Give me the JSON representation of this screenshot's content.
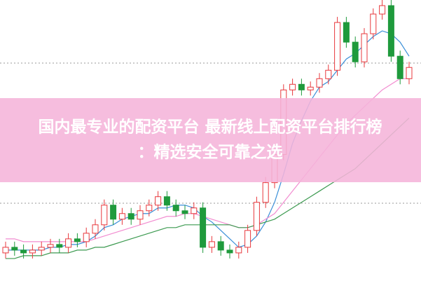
{
  "chart_data": {
    "type": "candlestick",
    "title_lines": [
      "国内最专业的配资平台 最新线上配资平台排行榜",
      "：精选安全可靠之选"
    ],
    "ylim": [
      0,
      100
    ],
    "up_color": "#e8383d",
    "down_color": "#1f9a3c",
    "open": [
      10,
      12,
      11,
      10,
      11,
      12,
      13,
      12,
      15,
      14,
      17,
      20,
      27,
      22,
      24,
      22,
      25,
      27,
      30,
      27,
      25,
      24,
      26,
      12,
      14,
      11,
      10,
      12,
      18,
      28,
      35,
      45,
      68,
      70,
      68,
      69,
      72,
      75,
      92,
      85,
      78,
      88,
      95,
      98,
      80,
      72
    ],
    "high": [
      14,
      14,
      13,
      13,
      14,
      15,
      15,
      17,
      17,
      19,
      22,
      29,
      29,
      26,
      26,
      27,
      29,
      32,
      32,
      29,
      27,
      28,
      28,
      16,
      16,
      13,
      14,
      20,
      30,
      37,
      47,
      70,
      72,
      72,
      71,
      74,
      77,
      94,
      94,
      87,
      90,
      97,
      100,
      100,
      82,
      78
    ],
    "low": [
      8,
      9,
      8,
      8,
      9,
      10,
      10,
      10,
      12,
      12,
      15,
      18,
      20,
      20,
      20,
      20,
      23,
      25,
      25,
      23,
      22,
      22,
      10,
      10,
      9,
      8,
      8,
      10,
      16,
      26,
      33,
      43,
      66,
      66,
      66,
      67,
      70,
      73,
      83,
      76,
      76,
      86,
      93,
      78,
      70,
      70
    ],
    "close": [
      12,
      11,
      10,
      11,
      12,
      13,
      12,
      15,
      14,
      17,
      20,
      27,
      22,
      24,
      22,
      25,
      27,
      30,
      27,
      25,
      24,
      26,
      12,
      14,
      11,
      10,
      12,
      18,
      28,
      35,
      45,
      68,
      70,
      68,
      69,
      72,
      75,
      92,
      85,
      78,
      88,
      95,
      98,
      80,
      72,
      76
    ],
    "series": [
      {
        "color": "#3a8fd8",
        "values": [
          11,
          11,
          11,
          11,
          11,
          12,
          12,
          13,
          13,
          14,
          16,
          19,
          20,
          22,
          23,
          24,
          24,
          26,
          26,
          27,
          27,
          26,
          23,
          21,
          18,
          15,
          12,
          13,
          16,
          21,
          28,
          38,
          49,
          57,
          64,
          69,
          71,
          75,
          79,
          81,
          84,
          87,
          89,
          88,
          85,
          80
        ]
      },
      {
        "color": "#f28cd0",
        "values": [
          15,
          15,
          14,
          14,
          14,
          14,
          14,
          14,
          14,
          14,
          15,
          16,
          17,
          18,
          19,
          20,
          21,
          22,
          23,
          23,
          24,
          24,
          23,
          22,
          21,
          20,
          19,
          19,
          20,
          22,
          24,
          28,
          32,
          36,
          40,
          44,
          48,
          52,
          56,
          59,
          62,
          65,
          68,
          70,
          72,
          72
        ]
      },
      {
        "color": "#3c9a50",
        "values": [
          8,
          8,
          9,
          9,
          9,
          10,
          10,
          10,
          11,
          11,
          12,
          12,
          13,
          14,
          15,
          16,
          17,
          18,
          19,
          19,
          20,
          20,
          20,
          20,
          20,
          20,
          19,
          19,
          20,
          21,
          22,
          24,
          26,
          28,
          30,
          32,
          34,
          36,
          38,
          40,
          43,
          46,
          49,
          52,
          55,
          58
        ]
      }
    ]
  }
}
